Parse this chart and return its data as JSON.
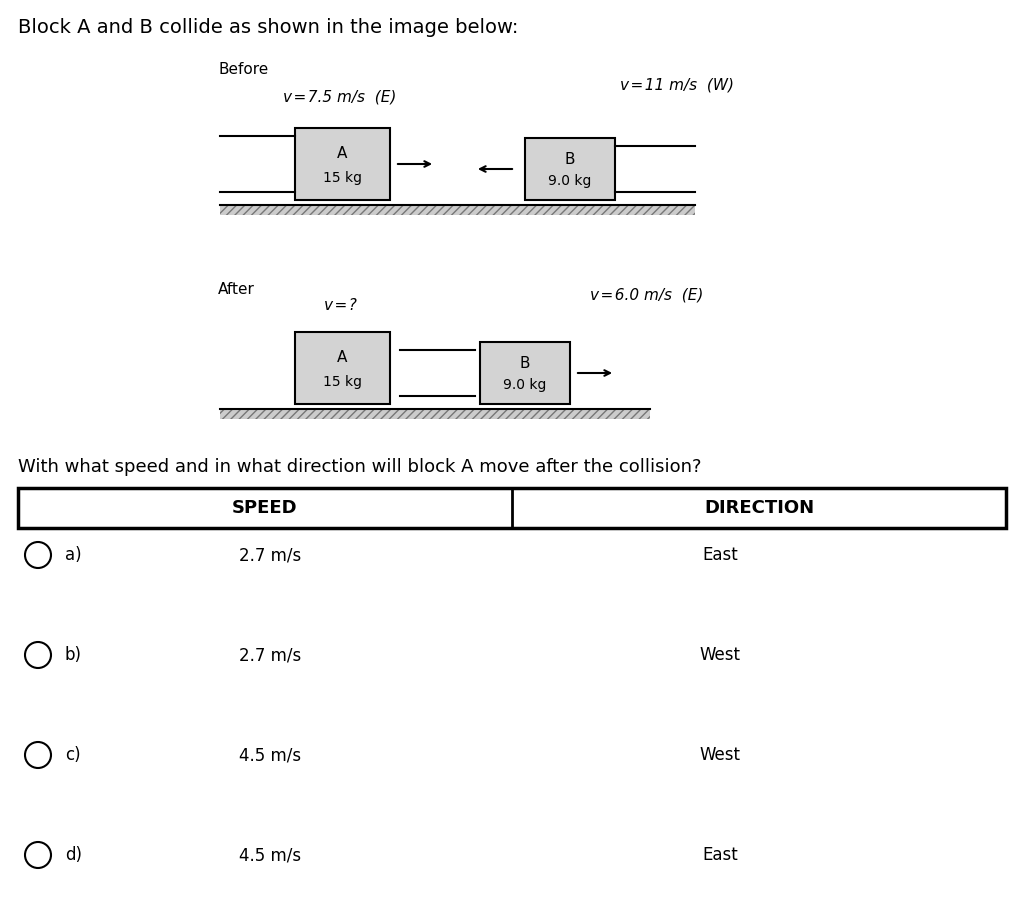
{
  "title": "Block A and B collide as shown in the image below:",
  "bg_color": "#ffffff",
  "before_label": "Before",
  "after_label": "After",
  "before_vA": "v = 7.5 m/s  (E)",
  "before_vB": "v = 11 m/s  (W)",
  "after_vA": "v = ?",
  "after_vB": "v = 6.0 m/s  (E)",
  "block_A_text1": "A",
  "block_A_text2": "15 kg",
  "block_B_text1": "B",
  "block_B_text2": "9.0 kg",
  "question": "With what speed and in what direction will block A move after the collision?",
  "col1_header": "SPEED",
  "col2_header": "DIRECTION",
  "options": [
    {
      "label": "a)",
      "speed": "2.7 m/s",
      "direction": "East"
    },
    {
      "label": "b)",
      "speed": "2.7 m/s",
      "direction": "West"
    },
    {
      "label": "c)",
      "speed": "4.5 m/s",
      "direction": "West"
    },
    {
      "label": "d)",
      "speed": "4.5 m/s",
      "direction": "East"
    }
  ],
  "block_fill": "#d3d3d3",
  "block_edge": "#000000",
  "title_fontsize": 14,
  "label_fontsize": 11,
  "option_fontsize": 12,
  "table_fontsize": 13
}
